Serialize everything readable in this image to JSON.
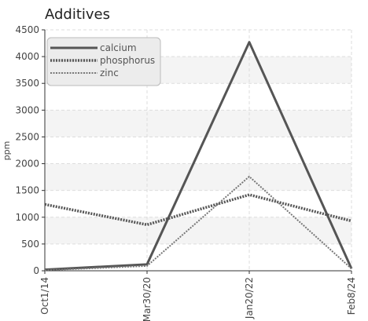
{
  "chart_data": {
    "type": "line",
    "title": "Additives",
    "xlabel": "",
    "ylabel": "ppm",
    "categories": [
      "Oct1/14",
      "Mar30/20",
      "Jan20/22",
      "Feb8/24"
    ],
    "ylim": [
      0,
      4500
    ],
    "yticks": [
      0,
      500,
      1000,
      1500,
      2000,
      2500,
      3000,
      3500,
      4000,
      4500
    ],
    "grid": true,
    "legend_position": "top-left",
    "series": [
      {
        "name": "calcium",
        "values": [
          20,
          120,
          4270,
          40
        ],
        "color": "#555555",
        "style": "solid"
      },
      {
        "name": "phosphorus",
        "values": [
          1240,
          860,
          1420,
          930
        ],
        "color": "#555555",
        "style": "dotted"
      },
      {
        "name": "zinc",
        "values": [
          10,
          90,
          1760,
          40
        ],
        "color": "#777777",
        "style": "dotted-thin"
      }
    ]
  }
}
